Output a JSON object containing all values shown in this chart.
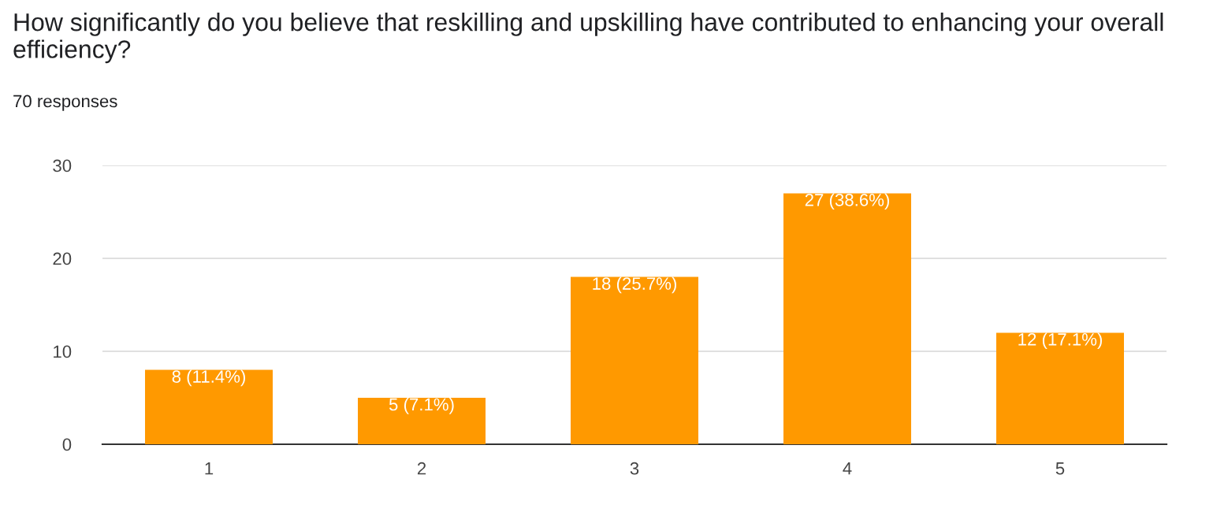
{
  "chart_data": {
    "type": "bar",
    "title": "How significantly do you believe that reskilling and upskilling have contributed to enhancing your overall efficiency?",
    "subtitle": "70 responses",
    "categories": [
      "1",
      "2",
      "3",
      "4",
      "5"
    ],
    "values": [
      8,
      5,
      18,
      27,
      12
    ],
    "value_labels": [
      "8 (11.4%)",
      "5 (7.1%)",
      "18 (25.7%)",
      "27 (38.6%)",
      "12 (17.1%)"
    ],
    "color": "#ff9900",
    "ylim": [
      0,
      30
    ],
    "yticks": [
      0,
      10,
      20,
      30
    ],
    "grid": "y"
  }
}
